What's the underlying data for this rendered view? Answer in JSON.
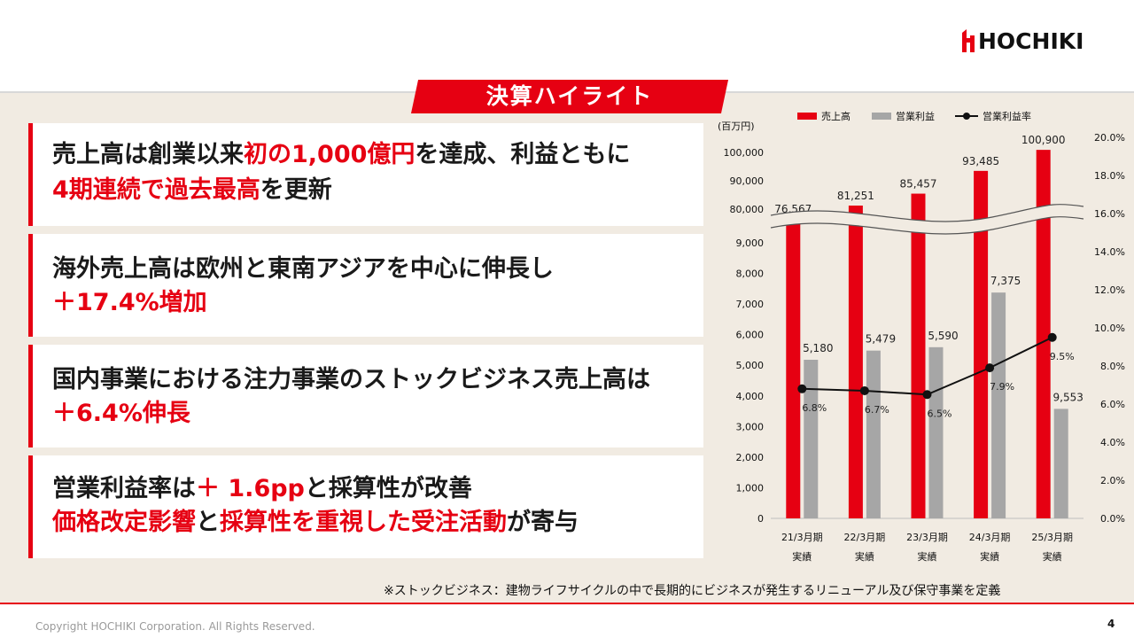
{
  "logo": {
    "text": "HOCHIKI"
  },
  "banner": {
    "title": "決算ハイライト"
  },
  "cards": [
    {
      "line1": [
        {
          "t": "売上高は創業以来",
          "red": false
        },
        {
          "t": "初の1,000億円",
          "red": true
        },
        {
          "t": "を達成、利益ともに",
          "red": false
        }
      ],
      "line2": [
        {
          "t": "4期連続で過去最高",
          "red": true
        },
        {
          "t": "を更新",
          "red": false
        }
      ]
    },
    {
      "line1": [
        {
          "t": "海外売上高は欧州と東南アジアを中心に伸長し",
          "red": false
        }
      ],
      "line2": [
        {
          "t": "＋17.4%増加",
          "red": true
        }
      ]
    },
    {
      "line1": [
        {
          "t": "国内事業における注力事業のストックビジネス売上高は",
          "red": false
        }
      ],
      "line2": [
        {
          "t": "＋6.4%伸長",
          "red": true
        }
      ]
    },
    {
      "line1": [
        {
          "t": "営業利益率は",
          "red": false
        },
        {
          "t": "＋ 1.6pp",
          "red": true
        },
        {
          "t": "と採算性が改善",
          "red": false
        }
      ],
      "line2": [
        {
          "t": "価格改定影響",
          "red": true
        },
        {
          "t": "と",
          "red": false
        },
        {
          "t": "採算性を重視した受注活動",
          "red": true
        },
        {
          "t": "が寄与",
          "red": false
        }
      ]
    }
  ],
  "note": "※ストックビジネス：建物ライフサイクルの中で長期的にビジネスが発生するリニューアル及び保守事業を定義",
  "copyright": "Copyright HOCHIKI Corporation. All Rights Reserved.",
  "page_number": "4",
  "colors": {
    "accent": "#e60012",
    "bar2": "#a6a6a6",
    "line": "#111111",
    "panel": "#f1ebe2"
  },
  "chart_data": {
    "type": "bar",
    "unit_label": "(百万円)",
    "categories": [
      "21/3月期",
      "22/3月期",
      "23/3月期",
      "24/3月期",
      "25/3月期"
    ],
    "category_sub": [
      "実績",
      "実績",
      "実績",
      "実績",
      "実績"
    ],
    "series": [
      {
        "name": "売上高",
        "type": "bar",
        "values": [
          76567,
          81251,
          85457,
          93485,
          100900
        ],
        "labels": [
          "76,567",
          "81,251",
          "85,457",
          "93,485",
          "100,900"
        ]
      },
      {
        "name": "営業利益",
        "type": "bar",
        "values": [
          5180,
          5479,
          5590,
          7375,
          9553
        ],
        "labels": [
          "5,180",
          "5,479",
          "5,590",
          "7,375",
          "9,553"
        ]
      },
      {
        "name": "営業利益率",
        "type": "line",
        "axis": "right",
        "values": [
          6.8,
          6.7,
          6.5,
          7.9,
          9.5
        ],
        "labels": [
          "6.8%",
          "6.7%",
          "6.5%",
          "7.9%",
          "9.5%"
        ]
      }
    ],
    "y_left_lower_ticks": [
      "0",
      "1,000",
      "2,000",
      "3,000",
      "4,000",
      "5,000",
      "6,000",
      "7,000",
      "8,000",
      "9,000"
    ],
    "y_left_upper_ticks": [
      "80,000",
      "90,000",
      "100,000"
    ],
    "y_left_lower_range": [
      0,
      9000
    ],
    "y_left_upper_range": [
      80000,
      100000
    ],
    "y_left_broken": true,
    "y_right_ticks": [
      "0.0%",
      "2.0%",
      "4.0%",
      "6.0%",
      "8.0%",
      "10.0%",
      "12.0%",
      "14.0%",
      "16.0%",
      "18.0%",
      "20.0%"
    ],
    "y_right_range": [
      0,
      20
    ],
    "legend_position": "top"
  }
}
